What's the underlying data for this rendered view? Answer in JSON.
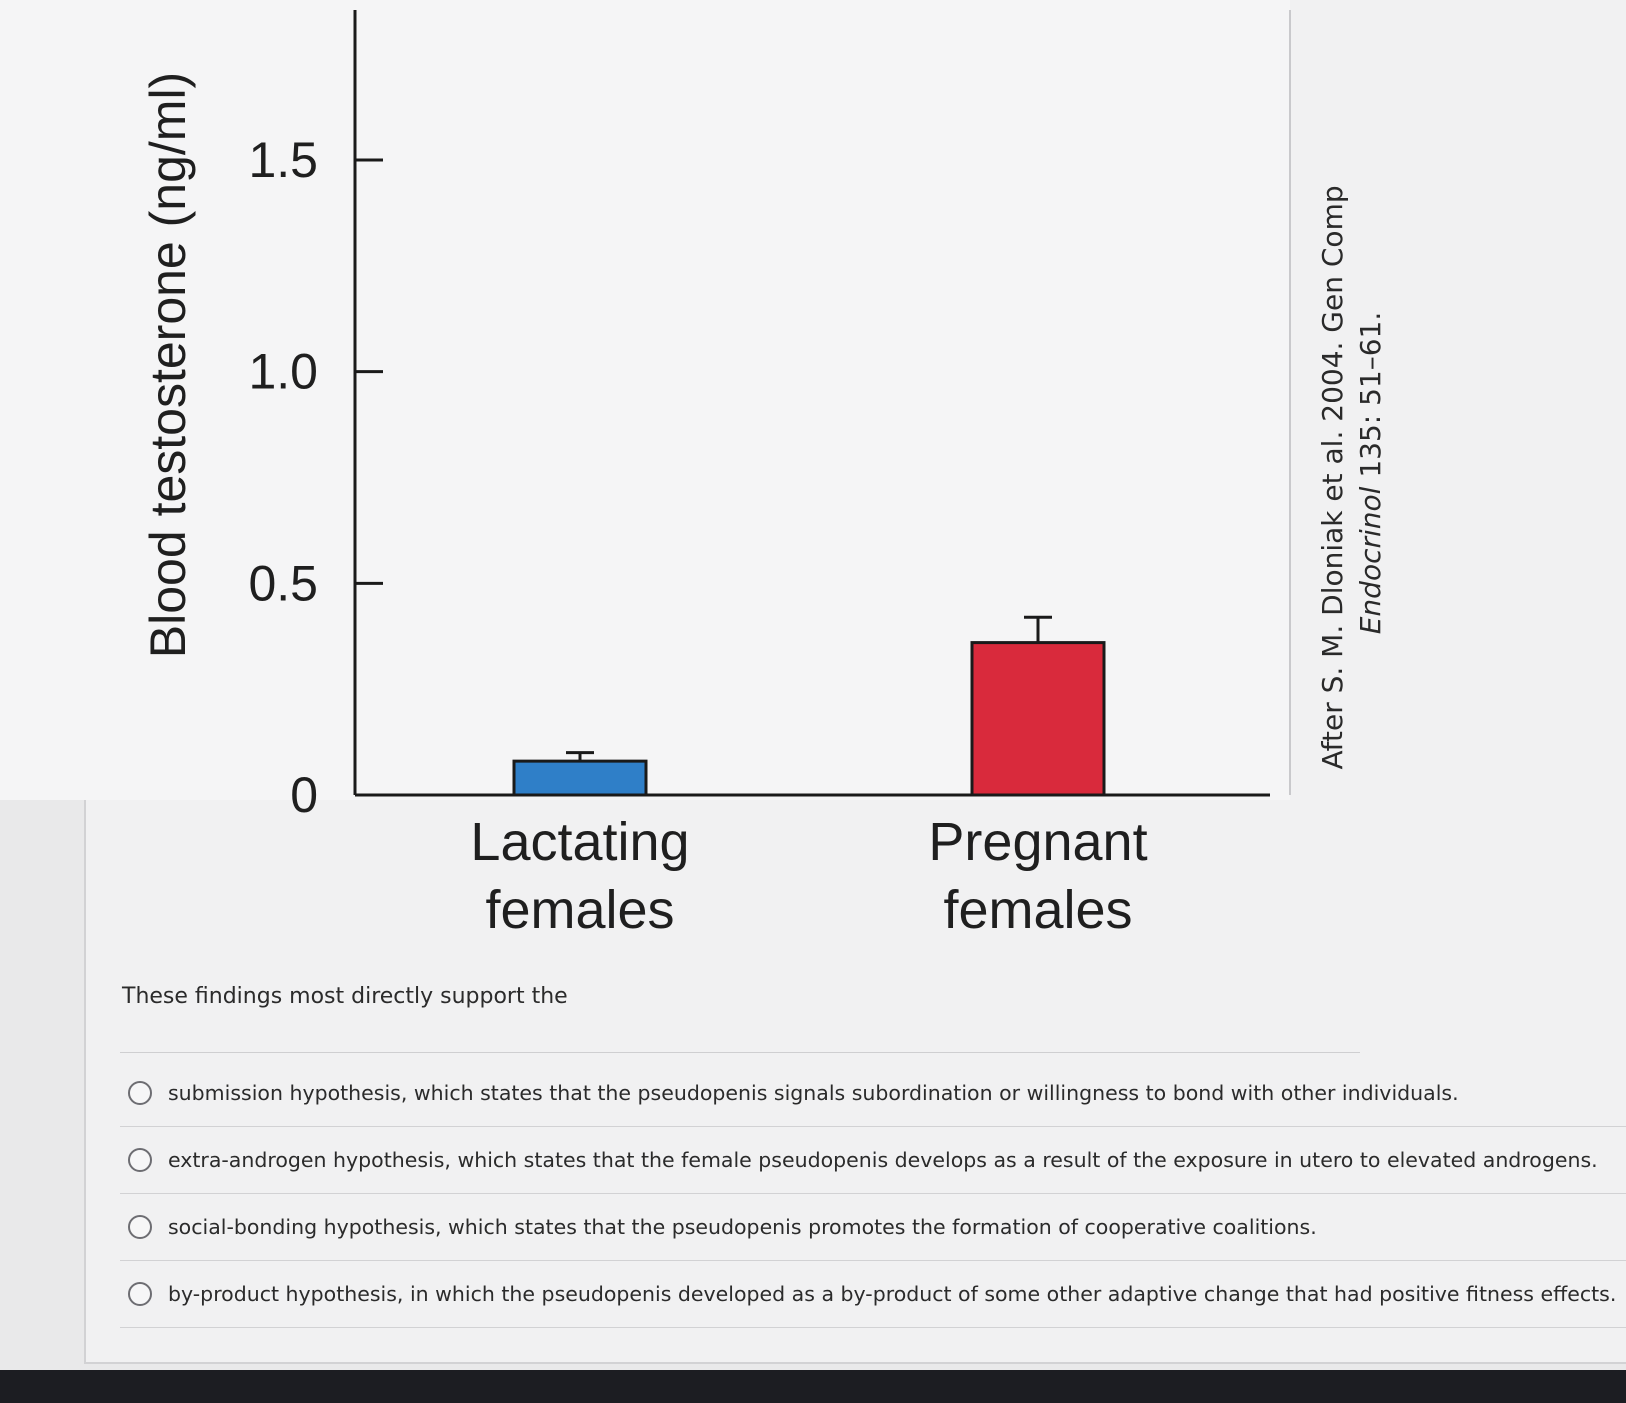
{
  "chart_data": {
    "type": "bar",
    "ylabel": "Blood testosterone (ng/ml)",
    "ylim": [
      0,
      1.85
    ],
    "yticks": [
      "0",
      "0.5",
      "1.0",
      "1.5"
    ],
    "ytick_values": [
      0,
      0.5,
      1.0,
      1.5
    ],
    "categories": [
      {
        "line1": "Lactating",
        "line2": "females"
      },
      {
        "line1": "Pregnant",
        "line2": "females"
      }
    ],
    "values": [
      0.08,
      0.36
    ],
    "errors": [
      0.02,
      0.06
    ],
    "colors": [
      "#2f7fc8",
      "#d92a3c"
    ],
    "grid": false
  },
  "source": {
    "line1": "After S. M. Dloniak et al. 2004. Gen Comp",
    "line2_italic": "Endocrinol",
    "line2_rest": " 135: 51–61."
  },
  "question": {
    "prompt": "These findings most directly support the",
    "options": [
      "submission hypothesis, which states that the pseudopenis signals subordination or willingness to bond with other individuals.",
      "extra-androgen hypothesis, which states that the female pseudopenis develops as a result of the exposure in utero to elevated androgens.",
      "social-bonding hypothesis, which states that the pseudopenis promotes the formation of cooperative coalitions.",
      "by-product hypothesis, in which the pseudopenis developed as a by-product of some other adaptive change that had positive fitness effects."
    ]
  }
}
